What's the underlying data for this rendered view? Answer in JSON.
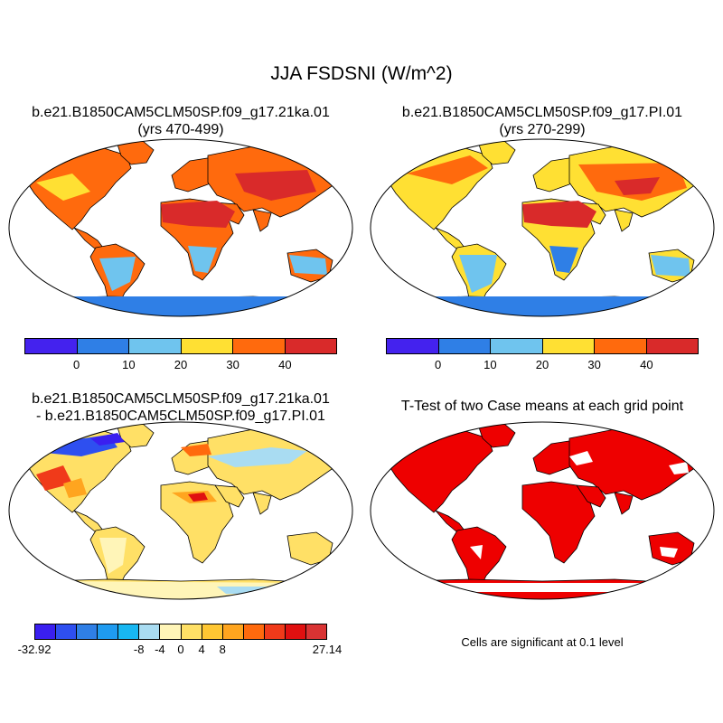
{
  "main_title": "JJA FSDSNI (W/m^2)",
  "panels": [
    {
      "title_line1": "b.e21.B1850CAM5CLM50SP.f09_g17.21ka.01",
      "title_line2": "(yrs 470-499)"
    },
    {
      "title_line1": "b.e21.B1850CAM5CLM50SP.f09_g17.PI.01",
      "title_line2": "(yrs 270-299)"
    },
    {
      "title_line1": "b.e21.B1850CAM5CLM50SP.f09_g17.21ka.01",
      "title_line2": "- b.e21.B1850CAM5CLM50SP.f09_g17.PI.01"
    },
    {
      "title_line1": "T-Test of two Case means at each grid point"
    }
  ],
  "colorbar_main": {
    "colors": [
      "#4422ee",
      "#2f7fe6",
      "#6fc4ee",
      "#ffe033",
      "#ff6a0d",
      "#d92a2a"
    ],
    "labels": [
      "0",
      "10",
      "20",
      "30",
      "40"
    ]
  },
  "colorbar_diff": {
    "colors": [
      "#3a1ff0",
      "#2e4ff0",
      "#2f7fe6",
      "#1f9bf0",
      "#18b7f2",
      "#a9dcf2",
      "#fff5b8",
      "#ffe066",
      "#ffc733",
      "#ffa51f",
      "#ff6a0d",
      "#f03a1a",
      "#e01010",
      "#d93333"
    ],
    "labels": [
      "-32.92",
      "-8",
      "-4",
      "0",
      "4",
      "8",
      "27.14"
    ]
  },
  "ttest_color": "#ee0000",
  "significance_note": "Cells are significant at 0.1 level"
}
